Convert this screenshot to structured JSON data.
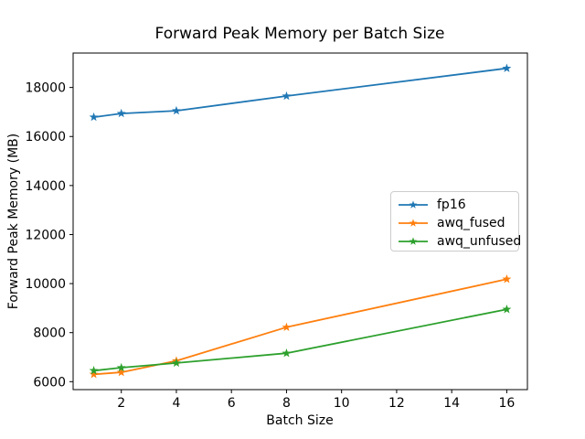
{
  "chart_data": {
    "type": "line",
    "title": "Forward Peak Memory per Batch Size",
    "xlabel": "Batch Size",
    "ylabel": "Forward Peak Memory (MB)",
    "x": [
      1,
      2,
      4,
      8,
      16
    ],
    "series": [
      {
        "name": "fp16",
        "color": "#1f77b4",
        "marker": "star",
        "values": [
          16790,
          16940,
          17050,
          17650,
          18780
        ]
      },
      {
        "name": "awq_fused",
        "color": "#ff7f0e",
        "marker": "star",
        "values": [
          6300,
          6380,
          6850,
          8220,
          10180
        ]
      },
      {
        "name": "awq_unfused",
        "color": "#2ca02c",
        "marker": "star",
        "values": [
          6450,
          6570,
          6760,
          7160,
          8950
        ]
      }
    ],
    "xticks": [
      2,
      4,
      6,
      8,
      10,
      12,
      14,
      16
    ],
    "yticks": [
      6000,
      8000,
      10000,
      12000,
      14000,
      16000,
      18000
    ],
    "xlim": [
      0.25,
      16.75
    ],
    "ylim": [
      5676,
      19404
    ],
    "grid": false,
    "legend": {
      "position": "center-right",
      "entries": [
        "fp16",
        "awq_fused",
        "awq_unfused"
      ]
    },
    "axis_color": "#000000",
    "background_color": "#ffffff"
  }
}
